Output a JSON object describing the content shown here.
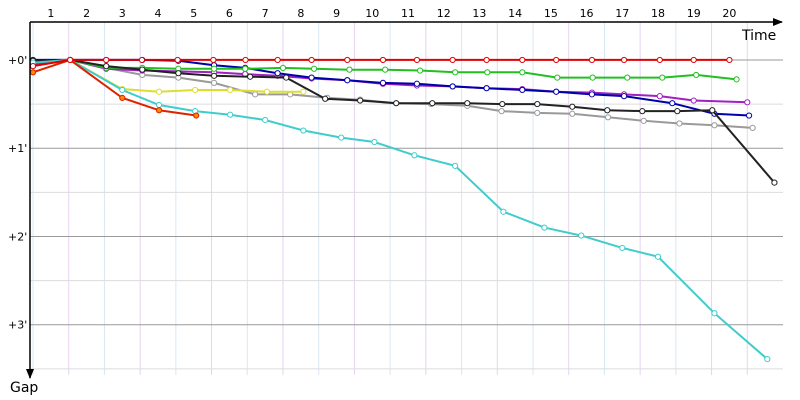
{
  "chart_data": {
    "type": "line",
    "x_axis_label": "Time",
    "y_axis_label": "Gap",
    "xlim": [
      0.5,
      21.5
    ],
    "xticks": [
      1,
      2,
      3,
      4,
      5,
      6,
      7,
      8,
      9,
      10,
      11,
      12,
      13,
      14,
      15,
      16,
      17,
      18,
      19,
      20
    ],
    "ylim": [
      -0.43,
      3.57
    ],
    "yticks": [
      {
        "value": 0,
        "label": "+0'"
      },
      {
        "value": 1,
        "label": "+1'"
      },
      {
        "value": 2,
        "label": "+2'"
      },
      {
        "value": 3,
        "label": "+3'"
      }
    ],
    "minor_yticks": [
      0.5,
      1.5,
      2.5,
      3.5
    ],
    "grid": true,
    "y_inverted": true,
    "series": [
      {
        "color": "#9a9a9a",
        "x": [
          0.5,
          1.54,
          2.55,
          3.56,
          4.57,
          5.57,
          6.72,
          7.7,
          8.74,
          9.66,
          10.67,
          11.65,
          12.66,
          13.62,
          14.62,
          15.6,
          16.6,
          17.6,
          18.6,
          19.58,
          20.65
        ],
        "values": [
          0,
          0,
          0.09,
          0.17,
          0.2,
          0.26,
          0.39,
          0.39,
          0.43,
          0.45,
          0.49,
          0.5,
          0.52,
          0.58,
          0.6,
          0.61,
          0.65,
          0.69,
          0.72,
          0.74,
          0.77
        ]
      },
      {
        "color": "#a020c0",
        "x": [
          0.5,
          1.54,
          2.55,
          3.56,
          4.57,
          5.57,
          6.44,
          7.35,
          8.3,
          9.3,
          10.3,
          11.25,
          12.25,
          13.2,
          14.2,
          15.15,
          16.15,
          17.05,
          18.05,
          19.0,
          20.5
        ],
        "values": [
          0.05,
          0,
          0.1,
          0.12,
          0.13,
          0.14,
          0.16,
          0.18,
          0.21,
          0.23,
          0.27,
          0.29,
          0.3,
          0.32,
          0.33,
          0.36,
          0.37,
          0.39,
          0.41,
          0.46,
          0.48
        ]
      },
      {
        "color": "#0000aa",
        "x": [
          0.5,
          1.54,
          2.55,
          3.56,
          4.57,
          5.57,
          6.44,
          7.35,
          8.3,
          9.3,
          10.3,
          11.25,
          12.25,
          13.2,
          14.2,
          15.15,
          16.15,
          17.05,
          18.4,
          19.58,
          20.55
        ],
        "values": [
          0,
          0,
          0,
          0,
          0.01,
          0.06,
          0.09,
          0.15,
          0.2,
          0.23,
          0.26,
          0.27,
          0.3,
          0.32,
          0.34,
          0.36,
          0.39,
          0.41,
          0.49,
          0.61,
          0.63
        ]
      },
      {
        "color": "#20c020",
        "x": [
          0.5,
          1.54,
          2.55,
          3.56,
          4.57,
          5.57,
          6.44,
          7.5,
          8.37,
          9.36,
          10.36,
          11.34,
          12.32,
          13.22,
          14.2,
          15.18,
          16.17,
          17.14,
          18.12,
          19.07,
          20.2
        ],
        "values": [
          0.02,
          0,
          0.09,
          0.09,
          0.1,
          0.1,
          0.1,
          0.09,
          0.1,
          0.11,
          0.11,
          0.12,
          0.14,
          0.14,
          0.14,
          0.2,
          0.2,
          0.2,
          0.2,
          0.17,
          0.22
        ]
      },
      {
        "color": "#dddd30",
        "x": [
          0.5,
          1.54,
          3.0,
          4.03,
          5.04,
          6.02,
          7.05,
          8.07
        ],
        "values": [
          0.02,
          0,
          0.33,
          0.36,
          0.34,
          0.34,
          0.36,
          0.36
        ]
      },
      {
        "color": "#222222",
        "x": [
          0.5,
          1.54,
          2.55,
          3.56,
          4.57,
          5.57,
          6.58,
          7.59,
          8.68,
          9.66,
          10.67,
          11.68,
          12.66,
          13.64,
          14.62,
          15.6,
          16.58,
          17.56,
          18.54,
          19.52,
          21.26
        ],
        "values": [
          0.01,
          0,
          0.07,
          0.11,
          0.15,
          0.18,
          0.19,
          0.2,
          0.44,
          0.46,
          0.49,
          0.49,
          0.49,
          0.5,
          0.5,
          0.53,
          0.57,
          0.58,
          0.58,
          0.57,
          1.39
        ]
      },
      {
        "color": "#40cccc",
        "x": [
          0.5,
          1.54,
          3.0,
          4.03,
          5.04,
          6.02,
          7.0,
          8.07,
          9.13,
          10.06,
          11.18,
          12.32,
          13.67,
          14.82,
          15.85,
          17.0,
          18.0,
          19.58,
          21.06
        ],
        "values": [
          0.03,
          0,
          0.34,
          0.51,
          0.58,
          0.62,
          0.68,
          0.8,
          0.88,
          0.93,
          1.08,
          1.2,
          1.72,
          1.9,
          1.99,
          2.13,
          2.23,
          2.87,
          3.39
        ]
      },
      {
        "color": "#dd2200",
        "marker_fill": "#ff8800",
        "x": [
          0.5,
          1.54,
          3.0,
          4.03,
          5.07
        ],
        "values": [
          0.14,
          0,
          0.43,
          0.57,
          0.63
        ]
      },
      {
        "color": "#e00000",
        "x": [
          0.5,
          1.54,
          2.55,
          3.55,
          4.55,
          5.55,
          6.45,
          7.35,
          8.3,
          9.3,
          10.3,
          11.25,
          12.25,
          13.2,
          14.2,
          15.15,
          16.15,
          17.05,
          18.05,
          19.0,
          20.0
        ],
        "values": [
          0.07,
          0,
          0,
          0,
          0,
          0,
          0,
          0,
          0,
          0,
          0,
          0,
          0,
          0,
          0,
          0,
          0,
          0,
          0,
          0,
          0
        ]
      }
    ]
  }
}
